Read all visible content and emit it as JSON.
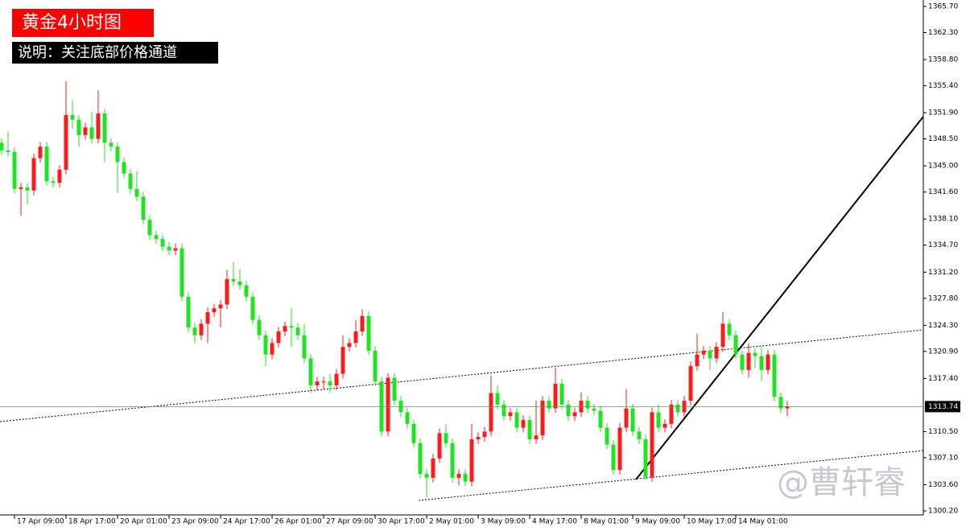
{
  "chart_data": {
    "type": "candlestick",
    "title": "黄金4小时图",
    "subtitle": "说明：关注底部价格通道",
    "watermark": "@曹轩睿",
    "up_color": "#ff1a1a",
    "down_color": "#1ee61e",
    "last_price": 1313.74,
    "ylim": [
      1300.2,
      1365.7
    ],
    "yticks": [
      {
        "value": 1365.7,
        "label": "1365.70"
      },
      {
        "value": 1362.3,
        "label": "1362.30"
      },
      {
        "value": 1358.8,
        "label": "1358.80"
      },
      {
        "value": 1355.4,
        "label": "1355.40"
      },
      {
        "value": 1351.9,
        "label": "1351.90"
      },
      {
        "value": 1348.5,
        "label": "1348.50"
      },
      {
        "value": 1345.0,
        "label": "1345.00"
      },
      {
        "value": 1341.6,
        "label": "1341.60"
      },
      {
        "value": 1338.1,
        "label": "1338.10"
      },
      {
        "value": 1334.7,
        "label": "1334.70"
      },
      {
        "value": 1331.2,
        "label": "1331.20"
      },
      {
        "value": 1327.8,
        "label": "1327.80"
      },
      {
        "value": 1324.3,
        "label": "1324.30"
      },
      {
        "value": 1320.9,
        "label": "1320.90"
      },
      {
        "value": 1317.4,
        "label": "1317.40"
      },
      {
        "value": 1310.5,
        "label": "1310.50"
      },
      {
        "value": 1307.1,
        "label": "1307.10"
      },
      {
        "value": 1303.6,
        "label": "1303.60"
      },
      {
        "value": 1300.2,
        "label": "1300.20"
      }
    ],
    "categories": [
      null,
      null,
      "17 Apr 09:00",
      null,
      null,
      null,
      null,
      null,
      null,
      null,
      "18 Apr 17:00",
      null,
      null,
      null,
      null,
      null,
      null,
      null,
      "20 Apr 01:00",
      null,
      null,
      null,
      null,
      null,
      null,
      null,
      "23 Apr 09:00",
      null,
      null,
      null,
      null,
      null,
      null,
      null,
      "24 Apr 17:00",
      null,
      null,
      null,
      null,
      null,
      null,
      null,
      "26 Apr 01:00",
      null,
      null,
      null,
      null,
      null,
      null,
      null,
      "27 Apr 09:00",
      null,
      null,
      null,
      null,
      null,
      null,
      null,
      "30 Apr 17:00",
      null,
      null,
      null,
      null,
      null,
      null,
      null,
      "2 May 01:00",
      null,
      null,
      null,
      null,
      null,
      null,
      null,
      "3 May 09:00",
      null,
      null,
      null,
      null,
      null,
      null,
      null,
      "4 May 17:00",
      null,
      null,
      null,
      null,
      null,
      null,
      null,
      "8 May 01:00",
      null,
      null,
      null,
      null,
      null,
      null,
      null,
      "9 May 09:00",
      null,
      null,
      null,
      null,
      null,
      null,
      null,
      "10 May 17:00",
      null,
      null,
      null,
      null,
      null,
      null,
      null,
      "14 May 01:00",
      null,
      null,
      null,
      null,
      null,
      null,
      null,
      null
    ],
    "open": [
      1348.0,
      1347.0,
      1346.8,
      1342.0,
      1342.2,
      1341.8,
      1346.0,
      1347.5,
      1343.0,
      1342.8,
      1344.5,
      1351.6,
      1351.0,
      1349.0,
      1350.0,
      1348.5,
      1351.8,
      1348.0,
      1347.5,
      1345.5,
      1344.0,
      1342.0,
      1341.0,
      1338.0,
      1336.0,
      1335.5,
      1334.5,
      1334.0,
      1334.3,
      1328.0,
      1324.0,
      1323.0,
      1324.5,
      1326.0,
      1326.5,
      1327.0,
      1330.3,
      1330.0,
      1329.5,
      1328.0,
      1325.0,
      1323.0,
      1320.5,
      1322.0,
      1323.5,
      1324.2,
      1324.0,
      1323.0,
      1320.0,
      1316.5,
      1317.0,
      1317.0,
      1316.5,
      1318.0,
      1321.5,
      1322.0,
      1323.5,
      1325.5,
      1321.0,
      1317.0,
      1310.5,
      1317.5,
      1314.5,
      1313.0,
      1311.5,
      1309.0,
      1305.0,
      1304.5,
      1307.0,
      1310.3,
      1309.0,
      1304.5,
      1305.0,
      1304.0,
      1309.5,
      1309.8,
      1310.5,
      1315.5,
      1314.0,
      1312.5,
      1313.0,
      1311.0,
      1312.0,
      1309.5,
      1310.0,
      1314.5,
      1313.5,
      1316.7,
      1314.0,
      1312.5,
      1313.0,
      1314.5,
      1313.5,
      1313.2,
      1311.0,
      1308.8,
      1305.5,
      1311.0,
      1313.5,
      1310.5,
      1309.5,
      1304.6,
      1313.0,
      1311.0,
      1311.5,
      1314.0,
      1313.0,
      1314.5,
      1319.0,
      1320.5,
      1321.0,
      1320.0,
      1321.5,
      1324.5,
      1323.0,
      1320.5,
      1318.5,
      1320.7,
      1320.3,
      1318.5,
      1320.5,
      1315.0,
      1313.5
    ],
    "high": [
      1348.6,
      1349.5,
      1347.4,
      1342.8,
      1342.8,
      1346.6,
      1348.1,
      1348.1,
      1343.6,
      1345.1,
      1356.0,
      1353.5,
      1351.6,
      1350.6,
      1352.0,
      1354.8,
      1352.4,
      1348.6,
      1348.1,
      1346.1,
      1344.6,
      1344.3,
      1341.6,
      1338.6,
      1336.6,
      1336.1,
      1335.1,
      1334.9,
      1334.9,
      1328.6,
      1324.6,
      1325.1,
      1326.6,
      1327.1,
      1327.6,
      1331.5,
      1332.5,
      1331.6,
      1330.1,
      1328.6,
      1325.6,
      1323.6,
      1322.6,
      1324.1,
      1324.8,
      1326.5,
      1324.6,
      1324.5,
      1320.6,
      1317.6,
      1317.6,
      1318.0,
      1318.6,
      1323.0,
      1322.6,
      1325.0,
      1326.4,
      1326.1,
      1321.6,
      1317.6,
      1318.1,
      1318.1,
      1315.1,
      1313.6,
      1312.1,
      1309.6,
      1305.6,
      1307.6,
      1310.9,
      1311.5,
      1309.6,
      1305.6,
      1305.6,
      1311.5,
      1310.4,
      1311.1,
      1317.8,
      1316.5,
      1314.6,
      1313.6,
      1313.6,
      1312.6,
      1312.6,
      1314.5,
      1315.1,
      1315.1,
      1318.8,
      1317.3,
      1314.6,
      1313.6,
      1315.6,
      1315.1,
      1314.1,
      1313.8,
      1311.6,
      1309.4,
      1311.6,
      1316.0,
      1314.1,
      1311.1,
      1310.1,
      1313.6,
      1314.0,
      1312.1,
      1314.6,
      1314.6,
      1315.1,
      1319.6,
      1323.2,
      1321.6,
      1321.6,
      1322.1,
      1326.0,
      1325.1,
      1323.6,
      1321.1,
      1322.0,
      1321.3,
      1321.5,
      1321.1,
      1321.1,
      1315.6,
      1314.5
    ],
    "low": [
      1346.4,
      1346.2,
      1341.4,
      1338.5,
      1340.0,
      1341.2,
      1345.4,
      1342.4,
      1342.2,
      1342.2,
      1343.9,
      1349.8,
      1347.5,
      1348.4,
      1347.9,
      1347.9,
      1345.5,
      1346.9,
      1341.5,
      1343.4,
      1341.4,
      1340.4,
      1337.4,
      1335.4,
      1334.9,
      1333.9,
      1333.4,
      1333.4,
      1327.4,
      1323.4,
      1322.0,
      1322.4,
      1322.0,
      1325.4,
      1324.0,
      1326.4,
      1329.4,
      1328.9,
      1327.4,
      1324.4,
      1322.4,
      1319.0,
      1319.9,
      1321.4,
      1322.9,
      1321.5,
      1322.4,
      1319.4,
      1315.5,
      1315.9,
      1316.0,
      1315.5,
      1315.9,
      1317.4,
      1320.9,
      1321.4,
      1322.9,
      1320.4,
      1316.4,
      1309.9,
      1309.9,
      1313.9,
      1312.4,
      1310.9,
      1308.4,
      1304.4,
      1302.0,
      1303.9,
      1306.4,
      1308.4,
      1303.9,
      1303.5,
      1303.4,
      1303.4,
      1308.9,
      1309.2,
      1309.9,
      1313.4,
      1311.9,
      1311.9,
      1310.4,
      1310.4,
      1308.9,
      1308.9,
      1309.4,
      1312.9,
      1312.9,
      1313.4,
      1311.9,
      1311.9,
      1312.4,
      1312.9,
      1312.6,
      1310.4,
      1308.2,
      1304.9,
      1304.9,
      1310.4,
      1309.9,
      1308.9,
      1304.2,
      1304.0,
      1310.4,
      1310.4,
      1310.9,
      1312.4,
      1312.4,
      1313.9,
      1318.4,
      1319.9,
      1318.5,
      1319.4,
      1320.9,
      1322.4,
      1319.9,
      1317.9,
      1317.5,
      1318.8,
      1317.0,
      1317.9,
      1314.4,
      1312.9,
      1312.5
    ],
    "close": [
      1347.0,
      1346.8,
      1342.0,
      1342.2,
      1341.8,
      1346.0,
      1347.5,
      1343.0,
      1342.8,
      1344.5,
      1351.6,
      1351.0,
      1349.0,
      1350.0,
      1348.5,
      1351.8,
      1348.0,
      1347.5,
      1345.5,
      1344.0,
      1342.0,
      1341.0,
      1338.0,
      1336.0,
      1335.5,
      1334.5,
      1334.0,
      1334.3,
      1328.0,
      1324.0,
      1323.0,
      1324.5,
      1326.0,
      1326.5,
      1327.0,
      1330.3,
      1330.0,
      1329.5,
      1328.0,
      1325.0,
      1323.0,
      1320.5,
      1322.0,
      1323.5,
      1324.2,
      1324.0,
      1323.0,
      1320.0,
      1316.5,
      1317.0,
      1317.0,
      1316.5,
      1318.0,
      1321.5,
      1322.0,
      1323.5,
      1325.5,
      1321.0,
      1317.0,
      1310.5,
      1317.5,
      1314.5,
      1313.0,
      1311.5,
      1309.0,
      1305.0,
      1304.5,
      1307.0,
      1310.3,
      1309.0,
      1304.5,
      1305.0,
      1304.0,
      1309.5,
      1309.8,
      1310.5,
      1315.5,
      1314.0,
      1312.5,
      1313.0,
      1311.0,
      1312.0,
      1309.5,
      1310.0,
      1314.5,
      1313.5,
      1316.7,
      1314.0,
      1312.5,
      1313.0,
      1314.5,
      1313.5,
      1313.2,
      1311.0,
      1308.8,
      1305.5,
      1311.0,
      1313.5,
      1310.5,
      1309.5,
      1304.6,
      1313.0,
      1311.0,
      1311.5,
      1314.0,
      1313.0,
      1314.5,
      1319.0,
      1320.5,
      1321.0,
      1320.0,
      1321.5,
      1324.5,
      1323.0,
      1320.5,
      1318.5,
      1320.7,
      1320.3,
      1318.5,
      1320.5,
      1315.0,
      1313.5,
      1313.74
    ]
  }
}
